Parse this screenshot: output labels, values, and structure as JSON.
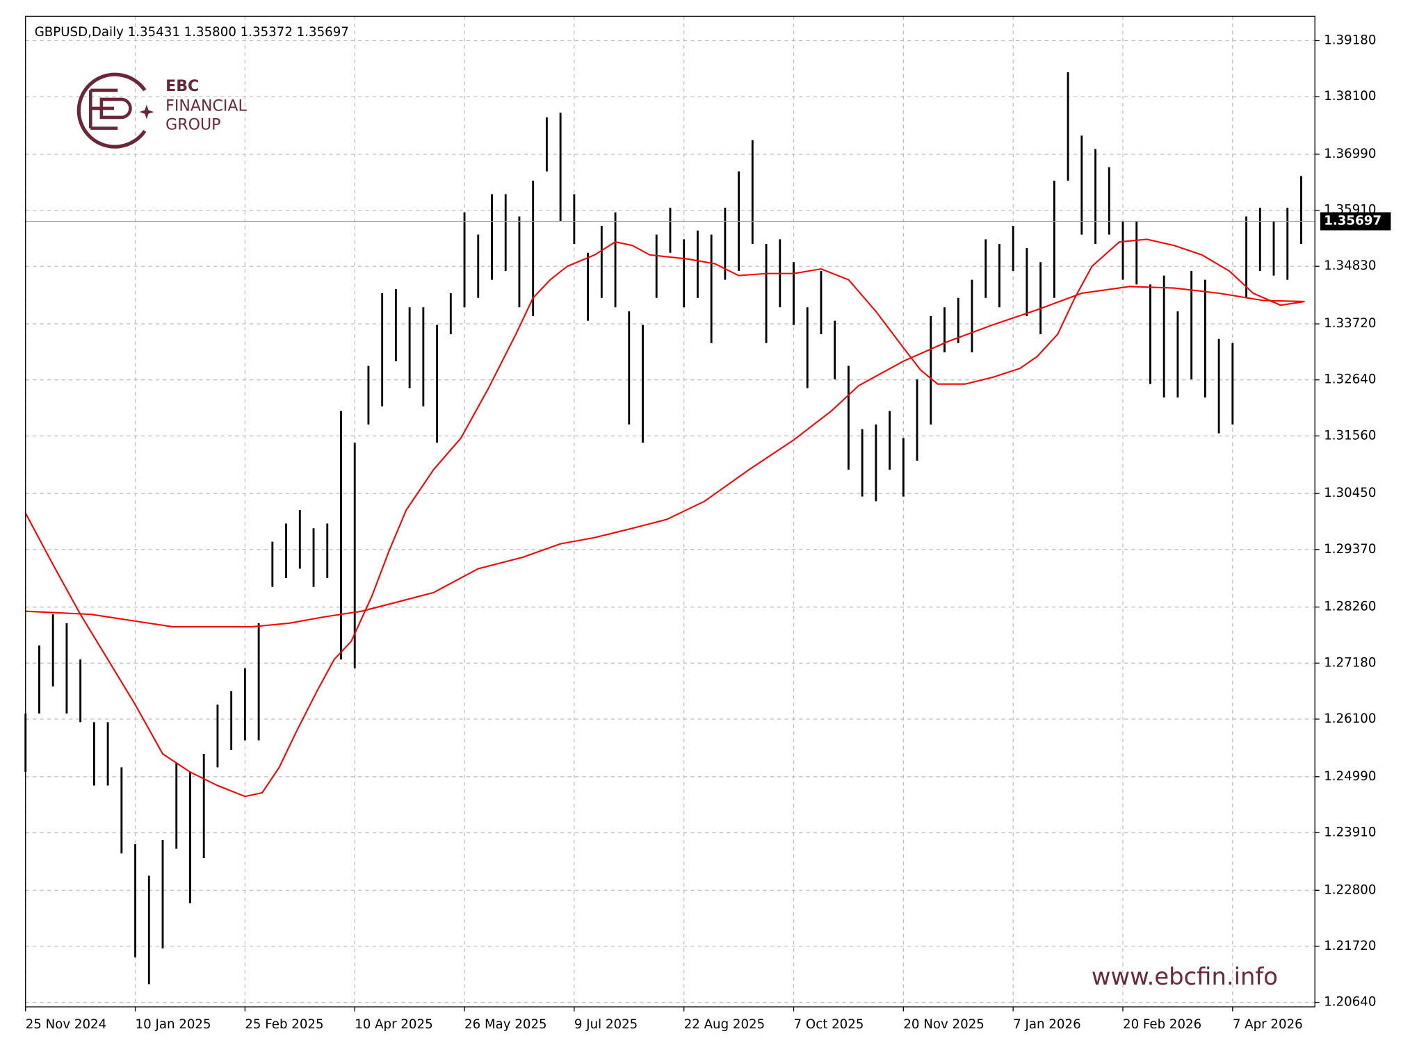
{
  "chart_data": {
    "type": "ohlc",
    "title": "GBPUSD,Daily  1.35431 1.35800 1.35372 1.35697",
    "logo_text": [
      "EBC",
      "FINANCIAL",
      "GROUP"
    ],
    "watermark": "www.ebcfin.info",
    "xlim": [
      0,
      376
    ],
    "ylim": [
      1.20553,
      1.3965
    ],
    "grid": true,
    "bars": {
      "color": "#000000",
      "x": [
        0,
        4,
        8,
        12,
        16,
        20,
        24,
        28,
        32,
        36,
        40,
        44,
        48,
        52,
        56,
        60,
        64,
        68,
        72,
        76,
        80,
        84,
        88,
        92,
        96,
        100,
        104,
        108,
        112,
        116,
        120,
        124,
        128,
        132,
        136,
        140,
        144,
        148,
        152,
        156,
        160,
        164,
        168,
        172,
        176,
        180,
        184,
        188,
        192,
        196,
        200,
        204,
        208,
        212,
        216,
        220,
        224,
        228,
        232,
        236,
        240,
        244,
        248,
        252,
        256,
        260,
        264,
        268,
        272,
        276,
        280,
        284,
        288,
        292,
        296,
        300,
        304,
        308,
        312,
        316,
        320,
        324,
        328,
        332,
        336,
        340,
        344,
        348,
        352,
        356,
        360,
        364,
        368,
        372
      ],
      "high": [
        1.2621,
        1.2752,
        1.2812,
        1.2795,
        1.2725,
        1.2604,
        1.2604,
        1.2517,
        1.2369,
        1.2308,
        1.2377,
        1.2525,
        1.2508,
        1.2543,
        1.2638,
        1.2664,
        1.2708,
        1.2795,
        1.2952,
        1.2987,
        1.3013,
        1.2978,
        1.2987,
        1.3204,
        1.3143,
        1.3291,
        1.3431,
        1.3439,
        1.3404,
        1.3404,
        1.337,
        1.3431,
        1.3587,
        1.3544,
        1.3622,
        1.3622,
        1.3579,
        1.3648,
        1.377,
        1.3779,
        1.3622,
        1.3509,
        1.3561,
        1.3587,
        1.3396,
        1.337,
        1.3544,
        1.3596,
        1.3535,
        1.3552,
        1.3544,
        1.3596,
        1.3666,
        1.3726,
        1.3526,
        1.3535,
        1.3491,
        1.3404,
        1.3474,
        1.3378,
        1.3291,
        1.3169,
        1.3178,
        1.3204,
        1.3152,
        1.3265,
        1.3387,
        1.3404,
        1.3422,
        1.3457,
        1.3535,
        1.3526,
        1.3561,
        1.3518,
        1.3491,
        1.3648,
        1.3857,
        1.3735,
        1.3709,
        1.3674,
        1.357,
        1.357,
        1.3448,
        1.3465,
        1.3396,
        1.3474,
        1.3457,
        1.3343,
        1.3335,
        1.3579,
        1.3596,
        1.357,
        1.3596,
        1.3657
      ],
      "low": [
        1.2508,
        1.2621,
        1.2673,
        1.2621,
        1.2604,
        1.2482,
        1.2482,
        1.2351,
        1.2151,
        1.2099,
        1.2168,
        1.236,
        1.2255,
        1.2342,
        1.2517,
        1.2551,
        1.2569,
        1.2569,
        1.2865,
        1.2882,
        1.29,
        1.2865,
        1.2882,
        1.2725,
        1.2708,
        1.3178,
        1.3213,
        1.33,
        1.3248,
        1.3213,
        1.3143,
        1.3352,
        1.3404,
        1.3422,
        1.3457,
        1.3474,
        1.3404,
        1.3387,
        1.3666,
        1.357,
        1.3526,
        1.3378,
        1.3422,
        1.3404,
        1.3178,
        1.3143,
        1.3422,
        1.3509,
        1.3404,
        1.3422,
        1.3335,
        1.3457,
        1.3474,
        1.3526,
        1.3335,
        1.3404,
        1.337,
        1.3248,
        1.3352,
        1.3265,
        1.3091,
        1.3039,
        1.303,
        1.3091,
        1.3039,
        1.3108,
        1.3178,
        1.3317,
        1.3335,
        1.3317,
        1.3422,
        1.3404,
        1.3474,
        1.3387,
        1.3352,
        1.3422,
        1.3648,
        1.3544,
        1.3526,
        1.3544,
        1.3457,
        1.3448,
        1.3256,
        1.323,
        1.323,
        1.3265,
        1.323,
        1.3161,
        1.3178,
        1.3422,
        1.3474,
        1.3465,
        1.3457,
        1.3526
      ]
    },
    "lines": [
      {
        "color": "#ff0000",
        "x": [
          0,
          8,
          16,
          24,
          32,
          40,
          48,
          56,
          64,
          69,
          74,
          79,
          85,
          90,
          95,
          101,
          106,
          111,
          119,
          127,
          135,
          143,
          148,
          153,
          158,
          166,
          172,
          177,
          182,
          193,
          201,
          208,
          216,
          224,
          232,
          240,
          248,
          256,
          261,
          266,
          274,
          282,
          290,
          295,
          301,
          306,
          311,
          319,
          327,
          335,
          343,
          351,
          358,
          366,
          373
        ],
        "values": [
          1.3007,
          1.2908,
          1.2812,
          1.2725,
          1.2638,
          1.2543,
          1.2508,
          1.2482,
          1.2461,
          1.2468,
          1.2517,
          1.2586,
          1.2664,
          1.2725,
          1.276,
          1.2847,
          1.2934,
          1.3013,
          1.3091,
          1.3152,
          1.3248,
          1.3352,
          1.3422,
          1.3457,
          1.3483,
          1.3505,
          1.353,
          1.3523,
          1.3505,
          1.3497,
          1.3488,
          1.3465,
          1.3469,
          1.3469,
          1.3478,
          1.3457,
          1.3396,
          1.3326,
          1.3283,
          1.3256,
          1.3256,
          1.3269,
          1.3286,
          1.3309,
          1.3352,
          1.3422,
          1.3483,
          1.353,
          1.3535,
          1.3523,
          1.3505,
          1.3474,
          1.3431,
          1.3408,
          1.3415
        ]
      },
      {
        "color": "#ff0000",
        "x": [
          0,
          19,
          32,
          43,
          53,
          66,
          77,
          87,
          98,
          108,
          119,
          132,
          145,
          156,
          166,
          177,
          187,
          198,
          211,
          224,
          235,
          243,
          256,
          269,
          282,
          295,
          308,
          322,
          335,
          348,
          361,
          373
        ],
        "values": [
          1.2818,
          1.2812,
          1.2799,
          1.2788,
          1.2788,
          1.2788,
          1.2795,
          1.2807,
          1.2818,
          1.2835,
          1.2854,
          1.29,
          1.2922,
          1.2948,
          1.296,
          1.2978,
          1.2995,
          1.303,
          1.3091,
          1.3148,
          1.3204,
          1.3253,
          1.33,
          1.3338,
          1.337,
          1.3399,
          1.3431,
          1.3444,
          1.3441,
          1.3431,
          1.3417,
          1.3415
        ]
      }
    ],
    "last_price": {
      "value": 1.35697,
      "label": "1.35697"
    },
    "xticks": [
      {
        "value": 0,
        "label": "25 Nov 2024"
      },
      {
        "value": 32,
        "label": "10 Jan 2025"
      },
      {
        "value": 64,
        "label": "25 Feb 2025"
      },
      {
        "value": 96,
        "label": "10 Apr 2025"
      },
      {
        "value": 128,
        "label": "26 May 2025"
      },
      {
        "value": 160,
        "label": "9 Jul 2025"
      },
      {
        "value": 192,
        "label": "22 Aug 2025"
      },
      {
        "value": 224,
        "label": "7 Oct 2025"
      },
      {
        "value": 256,
        "label": "20 Nov 2025"
      },
      {
        "value": 288,
        "label": "7 Jan 2026"
      },
      {
        "value": 320,
        "label": "20 Feb 2026"
      },
      {
        "value": 352,
        "label": "7 Apr 2026"
      }
    ],
    "yticks": [
      {
        "value": 1.2064,
        "label": "1.20640"
      },
      {
        "value": 1.2172,
        "label": "1.21720"
      },
      {
        "value": 1.228,
        "label": "1.22800"
      },
      {
        "value": 1.2391,
        "label": "1.23910"
      },
      {
        "value": 1.2499,
        "label": "1.24990"
      },
      {
        "value": 1.261,
        "label": "1.26100"
      },
      {
        "value": 1.2718,
        "label": "1.27180"
      },
      {
        "value": 1.2826,
        "label": "1.28260"
      },
      {
        "value": 1.2937,
        "label": "1.29370"
      },
      {
        "value": 1.3045,
        "label": "1.30450"
      },
      {
        "value": 1.3156,
        "label": "1.31560"
      },
      {
        "value": 1.3264,
        "label": "1.32640"
      },
      {
        "value": 1.3372,
        "label": "1.33720"
      },
      {
        "value": 1.3483,
        "label": "1.34830"
      },
      {
        "value": 1.3591,
        "label": "1.35910"
      },
      {
        "value": 1.3699,
        "label": "1.36990"
      },
      {
        "value": 1.381,
        "label": "1.38100"
      },
      {
        "value": 1.3918,
        "label": "1.39180"
      }
    ]
  }
}
